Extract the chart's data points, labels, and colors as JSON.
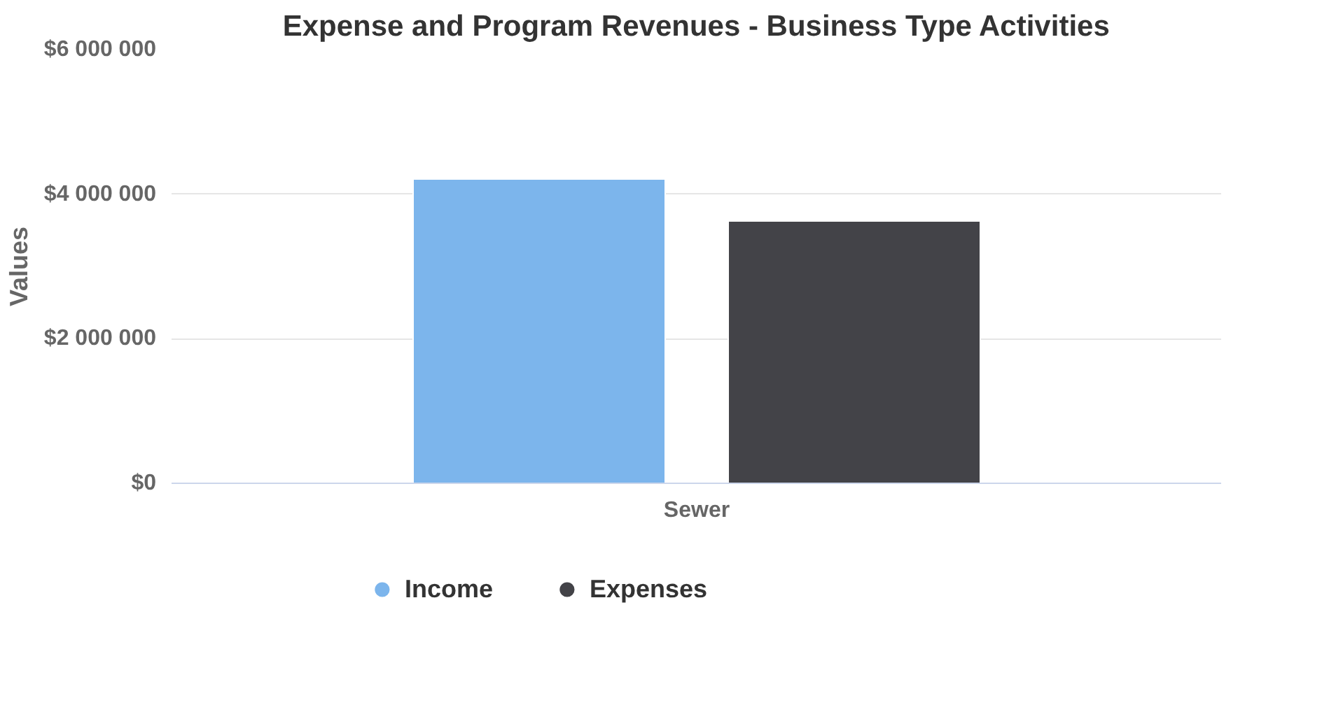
{
  "chart_data": {
    "type": "bar",
    "title": "Expense and Program Revenues - Business Type Activities",
    "ylabel": "Values",
    "categories": [
      "Sewer"
    ],
    "series": [
      {
        "name": "Income",
        "color": "#7cb5ec",
        "values": [
          4210000
        ]
      },
      {
        "name": "Expenses",
        "color": "#434348",
        "values": [
          3630000
        ]
      }
    ],
    "ylim": [
      0,
      6000000
    ],
    "yticks": [
      {
        "value": 0,
        "label": "$0"
      },
      {
        "value": 2000000,
        "label": "$2 000 000"
      },
      {
        "value": 4000000,
        "label": "$4 000 000"
      },
      {
        "value": 6000000,
        "label": "$6 000 000"
      }
    ],
    "grid": "y",
    "legend": "bottom"
  }
}
